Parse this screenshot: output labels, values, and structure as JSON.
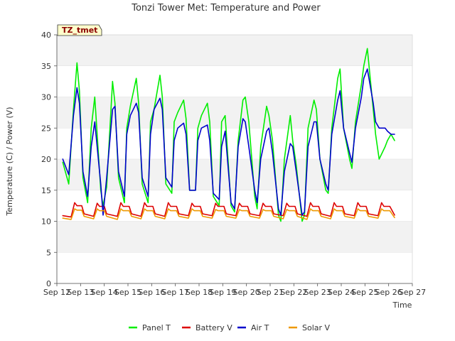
{
  "chart_data": {
    "type": "line",
    "title": "Tonzi Tower Met: Temperature and Power",
    "xlabel": "Time",
    "ylabel": "Temperature (C) / Power (V)",
    "ylim": [
      0,
      40
    ],
    "xlim": [
      0,
      15
    ],
    "yticks": [
      0,
      5,
      10,
      15,
      20,
      25,
      30,
      35,
      40
    ],
    "xtick_values": [
      0,
      1,
      2,
      3,
      4,
      5,
      6,
      7,
      8,
      9,
      10,
      11,
      12,
      13,
      14,
      15
    ],
    "xtick_labels": [
      "Sep 12",
      "Sep 13",
      "Sep 14",
      "Sep 15",
      "Sep 16",
      "Sep 17",
      "Sep 18",
      "Sep 19",
      "Sep 20",
      "Sep 21",
      "Sep 22",
      "Sep 23",
      "Sep 24",
      "Sep 25",
      "Sep 26",
      "Sep 27"
    ],
    "grid": true,
    "legend_position": "bottom",
    "annotation": "TZ_tmet",
    "series": [
      {
        "name": "Panel T",
        "color": "#00ee00",
        "x": [
          0.25,
          0.5,
          0.7,
          0.85,
          0.95,
          1.1,
          1.3,
          1.45,
          1.6,
          1.85,
          1.95,
          2.1,
          2.35,
          2.45,
          2.6,
          2.85,
          2.95,
          3.1,
          3.35,
          3.45,
          3.6,
          3.85,
          3.95,
          4.1,
          4.35,
          4.45,
          4.6,
          4.85,
          4.95,
          5.1,
          5.35,
          5.45,
          5.6,
          5.85,
          5.95,
          6.1,
          6.35,
          6.45,
          6.6,
          6.85,
          6.95,
          7.1,
          7.35,
          7.5,
          7.65,
          7.85,
          7.95,
          8.1,
          8.35,
          8.45,
          8.6,
          8.85,
          8.95,
          9.1,
          9.35,
          9.45,
          9.6,
          9.85,
          9.95,
          10.1,
          10.35,
          10.45,
          10.6,
          10.85,
          10.95,
          11.1,
          11.35,
          11.45,
          11.6,
          11.85,
          11.95,
          12.1,
          12.35,
          12.45,
          12.6,
          12.85,
          12.95,
          13.1,
          13.35,
          13.45,
          13.6,
          13.85,
          13.95,
          14.1,
          14.25
        ],
        "values": [
          19.5,
          16.0,
          28.0,
          35.5,
          31.0,
          17.0,
          13.0,
          25.0,
          30.0,
          15.0,
          12.5,
          15.5,
          32.5,
          29.0,
          17.0,
          13.0,
          25.0,
          28.5,
          33.0,
          29.0,
          16.0,
          13.0,
          26.0,
          28.0,
          33.5,
          30.0,
          16.0,
          14.5,
          26.0,
          27.5,
          29.5,
          26.5,
          15.0,
          15.0,
          25.0,
          27.0,
          29.0,
          26.0,
          14.0,
          12.5,
          26.0,
          27.0,
          12.5,
          11.5,
          23.0,
          29.5,
          30.0,
          26.0,
          14.0,
          12.0,
          22.0,
          28.5,
          27.0,
          23.0,
          11.0,
          10.0,
          20.0,
          27.0,
          23.0,
          19.0,
          10.0,
          11.0,
          25.0,
          29.5,
          28.0,
          20.0,
          15.0,
          14.5,
          25.0,
          33.0,
          34.5,
          25.0,
          20.0,
          18.5,
          26.0,
          32.0,
          35.0,
          37.8,
          28.0,
          24.0,
          20.0,
          22.0,
          23.0,
          24.0,
          23.0
        ]
      },
      {
        "name": "Battery V",
        "color": "#dd0000",
        "x": [
          0.25,
          0.6,
          0.75,
          0.85,
          1.05,
          1.15,
          1.55,
          1.7,
          1.8,
          2.0,
          2.1,
          2.55,
          2.7,
          2.8,
          3.05,
          3.15,
          3.55,
          3.7,
          3.8,
          4.05,
          4.15,
          4.55,
          4.7,
          4.8,
          5.05,
          5.15,
          5.55,
          5.7,
          5.8,
          6.05,
          6.15,
          6.55,
          6.7,
          6.8,
          7.05,
          7.15,
          7.55,
          7.7,
          7.8,
          8.05,
          8.15,
          8.55,
          8.7,
          8.8,
          9.05,
          9.15,
          9.55,
          9.7,
          9.8,
          10.05,
          10.15,
          10.55,
          10.7,
          10.8,
          11.05,
          11.15,
          11.55,
          11.7,
          11.8,
          12.05,
          12.15,
          12.55,
          12.7,
          12.8,
          13.05,
          13.15,
          13.55,
          13.7,
          13.8,
          14.05,
          14.25
        ],
        "values": [
          10.9,
          10.7,
          13.0,
          12.5,
          12.5,
          11.2,
          10.8,
          12.9,
          12.4,
          12.4,
          11.2,
          10.8,
          13.0,
          12.4,
          12.4,
          11.2,
          10.8,
          13.0,
          12.4,
          12.4,
          11.2,
          10.8,
          13.0,
          12.4,
          12.4,
          11.2,
          10.9,
          12.9,
          12.4,
          12.4,
          11.2,
          10.9,
          12.9,
          12.4,
          12.4,
          11.2,
          10.9,
          12.9,
          12.4,
          12.4,
          11.2,
          10.9,
          12.9,
          12.4,
          12.4,
          11.2,
          10.9,
          12.9,
          12.4,
          12.4,
          11.2,
          10.8,
          13.0,
          12.4,
          12.4,
          11.2,
          10.8,
          13.0,
          12.4,
          12.4,
          11.2,
          10.9,
          13.0,
          12.4,
          12.4,
          11.2,
          10.9,
          13.0,
          12.4,
          12.4,
          11.0
        ]
      },
      {
        "name": "Air T",
        "color": "#0000cc",
        "x": [
          0.25,
          0.5,
          0.7,
          0.85,
          0.95,
          1.1,
          1.3,
          1.45,
          1.6,
          1.85,
          1.95,
          2.1,
          2.35,
          2.45,
          2.6,
          2.85,
          2.95,
          3.1,
          3.35,
          3.45,
          3.6,
          3.85,
          3.95,
          4.1,
          4.35,
          4.45,
          4.6,
          4.85,
          4.95,
          5.1,
          5.35,
          5.45,
          5.6,
          5.85,
          5.95,
          6.1,
          6.35,
          6.45,
          6.6,
          6.85,
          6.95,
          7.1,
          7.35,
          7.5,
          7.65,
          7.85,
          7.95,
          8.1,
          8.35,
          8.45,
          8.6,
          8.85,
          8.95,
          9.1,
          9.35,
          9.45,
          9.6,
          9.85,
          9.95,
          10.1,
          10.35,
          10.45,
          10.6,
          10.85,
          10.95,
          11.1,
          11.35,
          11.45,
          11.6,
          11.85,
          11.95,
          12.1,
          12.35,
          12.45,
          12.6,
          12.85,
          12.95,
          13.1,
          13.35,
          13.45,
          13.6,
          13.85,
          13.95,
          14.1,
          14.25
        ],
        "values": [
          20.0,
          17.5,
          27.0,
          31.5,
          29.0,
          18.0,
          14.0,
          22.0,
          26.0,
          16.0,
          11.0,
          17.0,
          28.0,
          28.5,
          18.0,
          14.0,
          24.0,
          27.0,
          29.0,
          27.5,
          17.0,
          14.0,
          24.0,
          28.0,
          29.8,
          28.0,
          17.0,
          15.5,
          23.0,
          25.0,
          25.8,
          24.0,
          15.0,
          15.0,
          23.0,
          25.0,
          25.5,
          23.0,
          14.5,
          13.5,
          22.0,
          24.5,
          13.0,
          12.0,
          22.0,
          26.5,
          26.0,
          22.0,
          15.0,
          13.0,
          20.0,
          24.5,
          25.0,
          21.0,
          12.0,
          11.0,
          18.0,
          22.5,
          22.0,
          18.0,
          11.0,
          11.5,
          22.0,
          26.0,
          26.0,
          20.0,
          16.0,
          15.0,
          24.0,
          29.5,
          31.0,
          25.0,
          21.0,
          19.5,
          25.0,
          30.0,
          33.0,
          34.5,
          29.0,
          26.0,
          25.0,
          25.0,
          24.5,
          24.0,
          24.0
        ]
      },
      {
        "name": "Solar V",
        "color": "#ee9900",
        "x": [
          0.25,
          0.6,
          0.75,
          0.85,
          1.05,
          1.15,
          1.55,
          1.7,
          1.8,
          2.0,
          2.1,
          2.55,
          2.7,
          2.8,
          3.05,
          3.15,
          3.55,
          3.7,
          3.8,
          4.05,
          4.15,
          4.55,
          4.7,
          4.8,
          5.05,
          5.15,
          5.55,
          5.7,
          5.8,
          6.05,
          6.15,
          6.55,
          6.7,
          6.8,
          7.05,
          7.15,
          7.55,
          7.7,
          7.8,
          8.05,
          8.15,
          8.55,
          8.7,
          8.8,
          9.05,
          9.15,
          9.55,
          9.7,
          9.8,
          10.05,
          10.15,
          10.55,
          10.7,
          10.8,
          11.05,
          11.15,
          11.55,
          11.7,
          11.8,
          12.05,
          12.15,
          12.55,
          12.7,
          12.8,
          13.05,
          13.15,
          13.55,
          13.7,
          13.8,
          14.05,
          14.25
        ],
        "values": [
          10.5,
          10.3,
          12.0,
          11.8,
          11.8,
          10.8,
          10.4,
          12.0,
          11.7,
          11.7,
          10.8,
          10.3,
          12.0,
          11.7,
          11.7,
          10.8,
          10.4,
          12.0,
          11.7,
          11.7,
          10.8,
          10.4,
          12.0,
          11.7,
          11.7,
          10.8,
          10.5,
          12.0,
          11.7,
          11.7,
          10.8,
          10.5,
          11.9,
          11.7,
          11.7,
          10.8,
          10.5,
          11.9,
          11.7,
          11.7,
          10.8,
          10.5,
          11.9,
          11.7,
          11.7,
          10.8,
          10.4,
          11.9,
          11.7,
          11.7,
          10.8,
          10.3,
          12.0,
          11.7,
          11.7,
          10.8,
          10.4,
          12.0,
          11.7,
          11.7,
          10.8,
          10.5,
          12.0,
          11.7,
          11.7,
          10.8,
          10.5,
          12.0,
          11.7,
          11.7,
          10.6
        ]
      }
    ]
  }
}
